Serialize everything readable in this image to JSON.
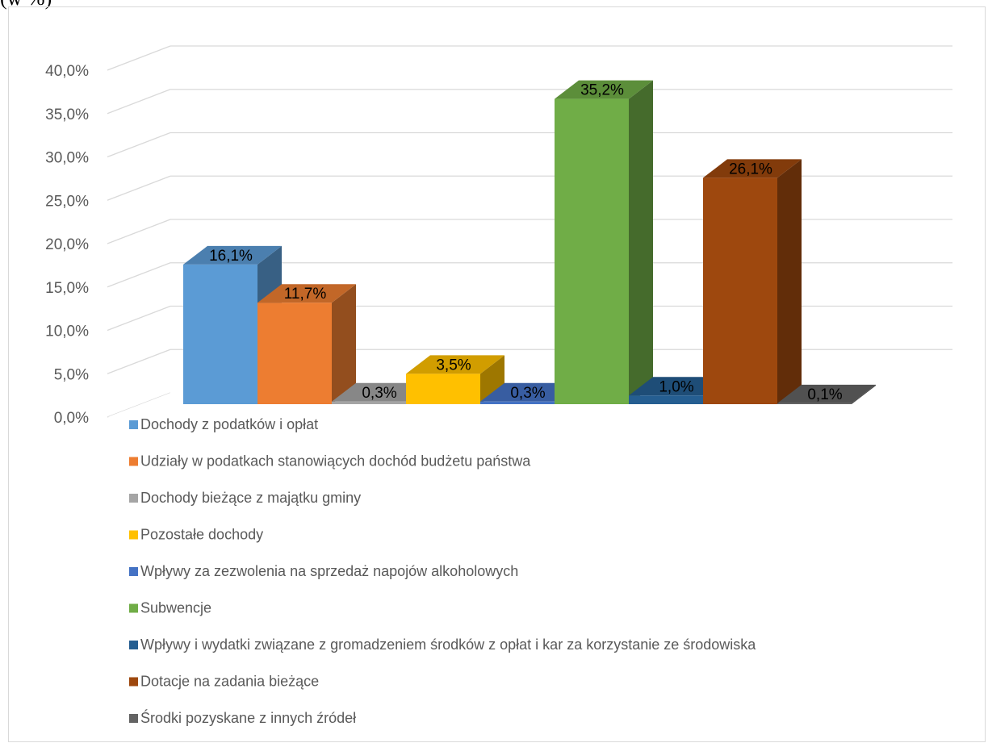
{
  "top_text": "(w %)",
  "chart_data": {
    "type": "bar",
    "title": "",
    "xlabel": "",
    "ylabel": "",
    "ylim": [
      0,
      40
    ],
    "y_ticks": [
      "0,0%",
      "5,0%",
      "10,0%",
      "15,0%",
      "20,0%",
      "25,0%",
      "30,0%",
      "35,0%",
      "40,0%"
    ],
    "grid": true,
    "style": "3d-clustered-column",
    "legend_position": "bottom",
    "series": [
      {
        "name": "Dochody z podatków i opłat",
        "value": 16.1,
        "label": "16,1%",
        "color": "#5b9bd5"
      },
      {
        "name": "Udziały w podatkach stanowiących dochód budżetu państwa",
        "value": 11.7,
        "label": "11,7%",
        "color": "#ed7d31"
      },
      {
        "name": "Dochody bieżące z majątku gminy",
        "value": 0.3,
        "label": "0,3%",
        "color": "#a5a5a5"
      },
      {
        "name": "Pozostałe dochody",
        "value": 3.5,
        "label": "3,5%",
        "color": "#ffc000"
      },
      {
        "name": "Wpływy za zezwolenia na sprzedaż napojów alkoholowych",
        "value": 0.3,
        "label": "0,3%",
        "color": "#4472c4"
      },
      {
        "name": "Subwencje",
        "value": 35.2,
        "label": "35,2%",
        "color": "#70ad47"
      },
      {
        "name": "Wpływy i wydatki związane z gromadzeniem środków z opłat i kar za korzystanie ze środowiska",
        "value": 1.0,
        "label": "1,0%",
        "color": "#255e91"
      },
      {
        "name": "Dotacje na zadania bieżące",
        "value": 26.1,
        "label": "26,1%",
        "color": "#9e480e"
      },
      {
        "name": "Środki pozyskane z innych źródeł",
        "value": 0.1,
        "label": "0,1%",
        "color": "#636363"
      }
    ]
  }
}
